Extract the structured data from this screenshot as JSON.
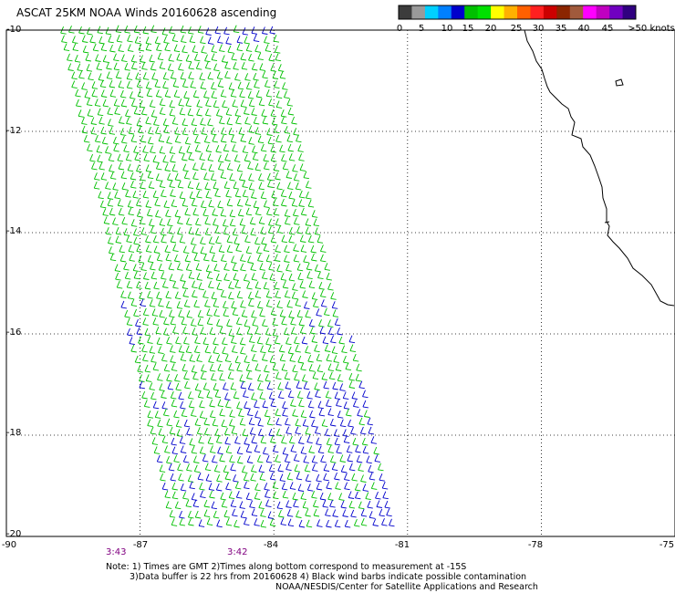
{
  "title": "ASCAT 25KM NOAA Winds 20160628 ascending",
  "colorbar": {
    "colors": [
      "#3c3c3c",
      "#9a9a9a",
      "#00d0ff",
      "#0080ff",
      "#0000cc",
      "#00c000",
      "#00e000",
      "#ffff00",
      "#ffb000",
      "#ff6000",
      "#ff2020",
      "#cc0000",
      "#8b2500",
      "#a05a3c",
      "#ff00ff",
      "#c000c0",
      "#7000c0",
      "#300080"
    ],
    "labels": [
      "0",
      "5",
      "10",
      "15",
      "20",
      "25",
      "30",
      "35",
      "40",
      "45",
      ">50 knots"
    ]
  },
  "map": {
    "lat_labels": [
      "-10",
      "-12",
      "-14",
      "-16",
      "-18",
      "-20"
    ],
    "lon_labels": [
      "-90",
      "-87",
      "-84",
      "-81",
      "-78",
      "-75"
    ],
    "lon_range": [
      -90,
      -75
    ],
    "lat_range": [
      -10,
      -20
    ],
    "grid": "dotted",
    "swath_colors": {
      "moderate": "#00c000",
      "light": "#0000cc"
    }
  },
  "times": [
    "3:43",
    "3:42"
  ],
  "notes": [
    "Note: 1) Times are GMT 2)Times along bottom correspond to measurement at -15S",
    "3)Data buffer is 22 hrs from 20160628 4) Black wind barbs indicate possible contamination",
    "NOAA/NESDIS/Center for Satellite Applications and Research"
  ]
}
